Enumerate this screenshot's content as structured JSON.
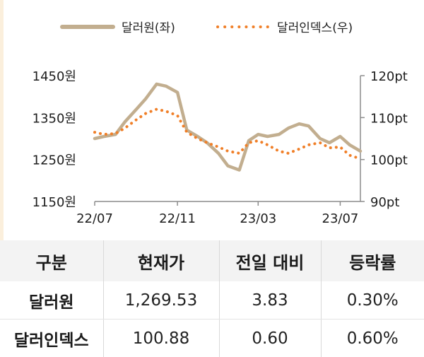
{
  "legend": {
    "won_label": "달러원(좌)",
    "dxy_label": "달러인덱스(우)"
  },
  "colors": {
    "won": "#c2ae8f",
    "dxy": "#f07f28",
    "axis": "#8c8c8c"
  },
  "chart_data": {
    "type": "line",
    "x_ticks": [
      "22/07",
      "22/11",
      "23/03",
      "23/07"
    ],
    "y_left": {
      "ticks": [
        "1450원",
        "1350원",
        "1250원",
        "1150원"
      ],
      "range": [
        1150,
        1450
      ]
    },
    "y_right": {
      "ticks": [
        "120pt",
        "110pt",
        "100pt",
        "90pt"
      ],
      "range": [
        90,
        120
      ]
    },
    "series": [
      {
        "name": "달러원(좌)",
        "axis": "left",
        "style": "solid",
        "x": [
          "2022-07-01",
          "2022-07-15",
          "2022-08-01",
          "2022-08-15",
          "2022-09-01",
          "2022-09-15",
          "2022-10-01",
          "2022-10-15",
          "2022-11-01",
          "2022-11-15",
          "2022-12-01",
          "2022-12-15",
          "2023-01-01",
          "2023-01-15",
          "2023-02-01",
          "2023-02-15",
          "2023-03-01",
          "2023-03-15",
          "2023-04-01",
          "2023-04-15",
          "2023-05-01",
          "2023-05-15",
          "2023-06-01",
          "2023-06-15",
          "2023-07-01",
          "2023-07-15",
          "2023-07-31"
        ],
        "values": [
          1300,
          1305,
          1310,
          1340,
          1370,
          1395,
          1430,
          1425,
          1410,
          1320,
          1305,
          1290,
          1265,
          1235,
          1225,
          1295,
          1310,
          1305,
          1310,
          1325,
          1335,
          1330,
          1300,
          1290,
          1305,
          1285,
          1270
        ]
      },
      {
        "name": "달러인덱스(우)",
        "axis": "right",
        "style": "dotted",
        "x": [
          "2022-07-01",
          "2022-07-15",
          "2022-08-01",
          "2022-08-15",
          "2022-09-01",
          "2022-09-15",
          "2022-10-01",
          "2022-10-15",
          "2022-11-01",
          "2022-11-15",
          "2022-12-01",
          "2022-12-15",
          "2023-01-01",
          "2023-01-15",
          "2023-02-01",
          "2023-02-15",
          "2023-03-01",
          "2023-03-15",
          "2023-04-01",
          "2023-04-15",
          "2023-05-01",
          "2023-05-15",
          "2023-06-01",
          "2023-06-15",
          "2023-07-01",
          "2023-07-15",
          "2023-07-31"
        ],
        "values": [
          106.5,
          106.0,
          106.2,
          107.5,
          109.5,
          111.0,
          112.0,
          111.5,
          110.5,
          106.5,
          105.0,
          104.0,
          103.0,
          102.0,
          101.5,
          104.0,
          104.5,
          103.5,
          102.0,
          101.5,
          102.5,
          103.5,
          104.0,
          102.8,
          103.0,
          101.0,
          100.2
        ]
      }
    ]
  },
  "table": {
    "headers": [
      "구분",
      "현재가",
      "전일 대비",
      "등락률"
    ],
    "rows": [
      [
        "달러원",
        "1,269.53",
        "3.83",
        "0.30%"
      ],
      [
        "달러인덱스",
        "100.88",
        "0.60",
        "0.60%"
      ]
    ]
  }
}
